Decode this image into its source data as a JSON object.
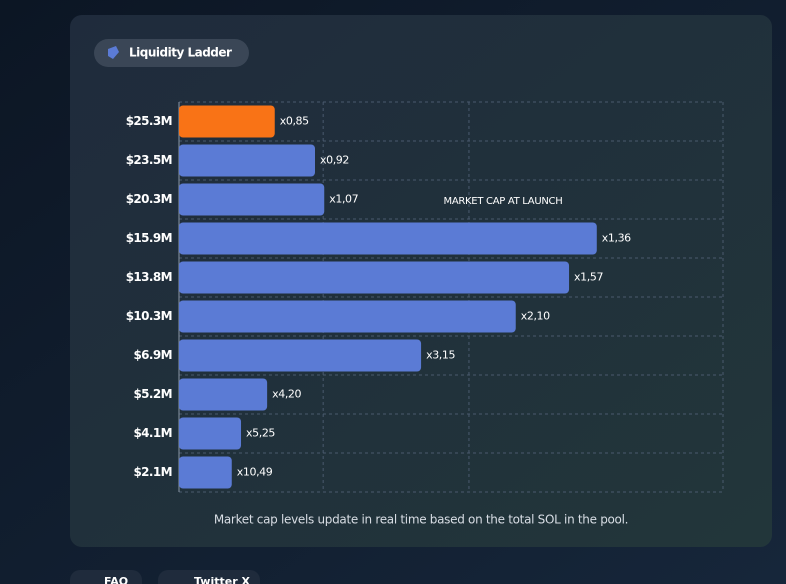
{
  "chart_data": {
    "type": "bar",
    "orientation": "horizontal",
    "title": "Liquidity Ladder",
    "categories": [
      "$25.3M",
      "$23.5M",
      "$20.3M",
      "$15.9M",
      "$13.8M",
      "$10.3M",
      "$6.9M",
      "$5.2M",
      "$4.1M",
      "$2.1M"
    ],
    "values": [
      17.6,
      25,
      26.7,
      76.8,
      71.7,
      61.9,
      44.5,
      16.2,
      11.4,
      9.7
    ],
    "multipliers": [
      "x0,85",
      "x0,92",
      "x1,07",
      "x1,36",
      "x1,57",
      "x2,10",
      "x3,15",
      "x4,20",
      "x5,25",
      "x10,49"
    ],
    "colors": [
      "#f97316",
      "#5b7bd5",
      "#5b7bd5",
      "#5b7bd5",
      "#5b7bd5",
      "#5b7bd5",
      "#5b7bd5",
      "#5b7bd5",
      "#5b7bd5",
      "#5b7bd5"
    ],
    "xlim": [
      0,
      100
    ],
    "annotation": "MARKET CAP AT LAUNCH",
    "footnote": "Market cap levels update in real time based on the total SOL in the pool."
  },
  "nav": [
    "FAQ",
    "Twitter X"
  ]
}
